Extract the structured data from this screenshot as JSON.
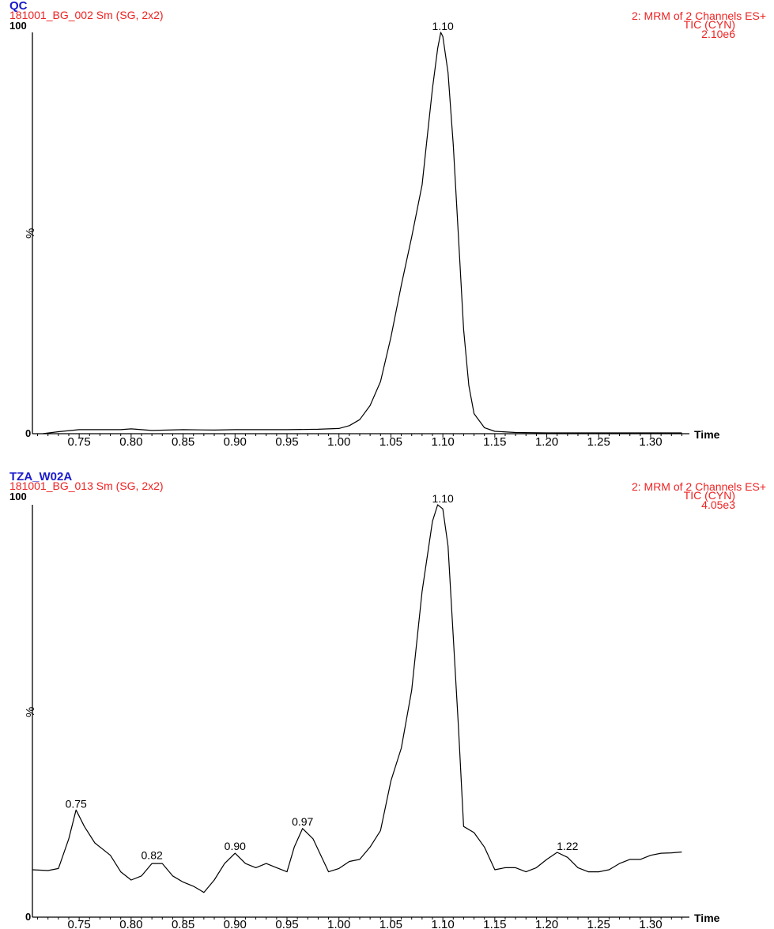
{
  "chart_data": [
    {
      "type": "line",
      "sample_name": "QC",
      "file_name": "181001_BG_002 Sm (SG, 2x2)",
      "channel_info": "2: MRM of 2 Channels ES+",
      "detector": "TIC (CYN)",
      "intensity": "2.10e6",
      "xlabel": "Time",
      "ylabel": "%",
      "y_max_label": "100",
      "y_min_label": "0",
      "xlim": [
        0.705,
        1.335
      ],
      "ylim": [
        0,
        100
      ],
      "x_ticks": [
        "0.75",
        "0.80",
        "0.85",
        "0.90",
        "0.95",
        "1.00",
        "1.05",
        "1.10",
        "1.15",
        "1.20",
        "1.25",
        "1.30"
      ],
      "peak_labels": [
        {
          "x": 1.1,
          "y": 100,
          "label": "1.10"
        }
      ],
      "series": [
        {
          "x": [
            0.715,
            0.73,
            0.75,
            0.77,
            0.79,
            0.8,
            0.82,
            0.85,
            0.88,
            0.9,
            0.92,
            0.95,
            0.98,
            1.0,
            1.01,
            1.02,
            1.03,
            1.04,
            1.05,
            1.06,
            1.07,
            1.08,
            1.085,
            1.09,
            1.095,
            1.098,
            1.1,
            1.105,
            1.11,
            1.115,
            1.12,
            1.125,
            1.13,
            1.14,
            1.15,
            1.17,
            1.2,
            1.25,
            1.3,
            1.33
          ],
          "y": [
            0,
            0.5,
            1,
            1,
            1,
            1.2,
            0.8,
            1,
            0.9,
            1,
            1,
            1,
            1.1,
            1.3,
            2,
            3.5,
            7,
            13,
            24,
            37,
            49,
            62,
            74,
            86,
            96,
            100,
            99,
            90,
            72,
            49,
            26,
            12,
            5,
            1.5,
            0.6,
            0.3,
            0.2,
            0.2,
            0.2,
            0.2
          ]
        }
      ]
    },
    {
      "type": "line",
      "sample_name": "TZA_W02A",
      "file_name": "181001_BG_013 Sm (SG, 2x2)",
      "channel_info": "2: MRM of 2 Channels ES+",
      "detector": "TIC (CYN)",
      "intensity": "4.05e3",
      "xlabel": "Time",
      "ylabel": "%",
      "y_max_label": "100",
      "y_min_label": "0",
      "xlim": [
        0.705,
        1.335
      ],
      "ylim": [
        0,
        100
      ],
      "x_ticks": [
        "0.75",
        "0.80",
        "0.85",
        "0.90",
        "0.95",
        "1.00",
        "1.05",
        "1.10",
        "1.15",
        "1.20",
        "1.25",
        "1.30"
      ],
      "peak_labels": [
        {
          "x": 0.747,
          "y": 26,
          "label": "0.75"
        },
        {
          "x": 0.82,
          "y": 13.5,
          "label": "0.82"
        },
        {
          "x": 0.9,
          "y": 15.7,
          "label": "0.90"
        },
        {
          "x": 0.965,
          "y": 21.6,
          "label": "0.97"
        },
        {
          "x": 1.1,
          "y": 100,
          "label": "1.10"
        },
        {
          "x": 1.22,
          "y": 15.7,
          "label": "1.22"
        }
      ],
      "series": [
        {
          "x": [
            0.705,
            0.72,
            0.73,
            0.74,
            0.747,
            0.755,
            0.765,
            0.78,
            0.79,
            0.8,
            0.81,
            0.82,
            0.83,
            0.84,
            0.85,
            0.86,
            0.87,
            0.88,
            0.89,
            0.9,
            0.91,
            0.92,
            0.93,
            0.94,
            0.95,
            0.957,
            0.965,
            0.975,
            0.99,
            1.0,
            1.01,
            1.02,
            1.03,
            1.04,
            1.05,
            1.06,
            1.07,
            1.08,
            1.09,
            1.095,
            1.1,
            1.105,
            1.11,
            1.115,
            1.12,
            1.13,
            1.14,
            1.15,
            1.16,
            1.17,
            1.18,
            1.19,
            1.2,
            1.21,
            1.22,
            1.23,
            1.24,
            1.25,
            1.26,
            1.27,
            1.28,
            1.29,
            1.3,
            1.31,
            1.32,
            1.33
          ],
          "y": [
            11.5,
            11.3,
            11.8,
            19,
            26,
            22,
            18,
            15,
            11,
            9,
            10,
            13,
            13,
            10,
            8.5,
            7.5,
            6,
            9,
            13,
            15.5,
            13,
            12,
            13,
            12,
            11,
            17,
            21.5,
            19,
            11,
            11.8,
            13.5,
            14,
            17,
            21,
            33,
            41,
            55,
            79,
            96,
            100,
            99,
            90,
            68,
            46,
            22,
            20.5,
            17,
            11.5,
            12,
            12,
            11,
            12,
            14,
            15.7,
            14.5,
            12,
            11,
            11,
            11.5,
            13,
            14,
            14,
            15,
            15.5,
            15.6,
            15.8
          ]
        }
      ]
    }
  ]
}
